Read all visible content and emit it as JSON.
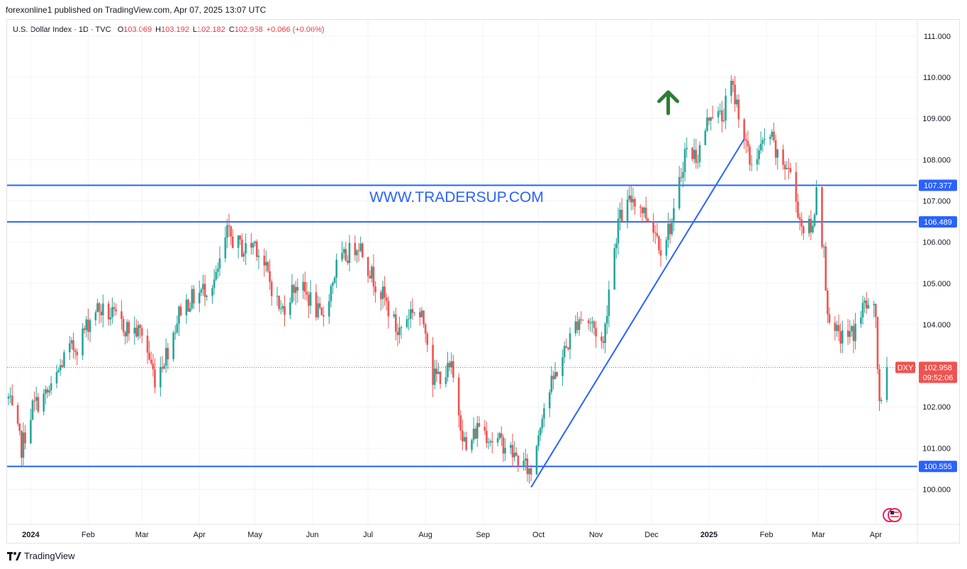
{
  "header": {
    "publisher": "forexonline1 published on TradingView.com, Apr 07, 2025 13:07 UTC"
  },
  "legend": {
    "symbol": "U.S. Dollar Index · 1D · TVC",
    "o_label": "O",
    "o_value": "103.069",
    "h_label": "H",
    "h_value": "103.192",
    "l_label": "L",
    "l_value": "102.182",
    "c_label": "C",
    "c_value": "102.958",
    "change": "+0.066 (+0.06%)"
  },
  "watermark": "WWW.TRADERSUP.COM",
  "footer": {
    "brand": "TradingView"
  },
  "colors": {
    "up": "#26a69a",
    "down": "#ef5350",
    "level_line": "#2962ff",
    "trend_line": "#2962ff",
    "arrow": "#2e7d32",
    "price_tag": "#ef5350"
  },
  "chart_data": {
    "type": "candlestick",
    "symbol": "DXY",
    "x_ticks": [
      "2024",
      "Feb",
      "Mar",
      "Apr",
      "May",
      "Jun",
      "Jul",
      "Aug",
      "Sep",
      "Oct",
      "Nov",
      "Dec",
      "2025",
      "Feb",
      "Mar",
      "Apr"
    ],
    "y_ticks": [
      "100.000",
      "101.000",
      "102.000",
      "103.000",
      "104.000",
      "105.000",
      "106.000",
      "107.000",
      "108.000",
      "109.000",
      "110.000",
      "111.000"
    ],
    "ylim": [
      99.2,
      111.6
    ],
    "horizontal_levels": [
      {
        "label": "107.377",
        "value": 107.377
      },
      {
        "label": "106.489",
        "value": 106.489
      },
      {
        "label": "100.555",
        "value": 100.555
      }
    ],
    "current_price": {
      "symbol_tag": "DXY",
      "label": "102.958",
      "value": 102.958,
      "countdown": "09:52:06"
    },
    "trend_line": {
      "from": [
        "2024-09-27",
        100.05
      ],
      "to": [
        "2025-01-20",
        108.5
      ]
    },
    "arrow": {
      "date": "2024-12-10",
      "direction": "up"
    },
    "anchor_closes": [
      [
        "2023-12-20",
        102.2
      ],
      [
        "2023-12-27",
        101.0
      ],
      [
        "2024-01-02",
        102.0
      ],
      [
        "2024-01-12",
        102.4
      ],
      [
        "2024-01-20",
        103.3
      ],
      [
        "2024-01-26",
        103.5
      ],
      [
        "2024-02-05",
        104.4
      ],
      [
        "2024-02-14",
        104.2
      ],
      [
        "2024-02-22",
        103.9
      ],
      [
        "2024-03-01",
        103.8
      ],
      [
        "2024-03-08",
        102.7
      ],
      [
        "2024-03-15",
        103.4
      ],
      [
        "2024-03-22",
        104.4
      ],
      [
        "2024-04-02",
        104.8
      ],
      [
        "2024-04-10",
        105.1
      ],
      [
        "2024-04-16",
        106.2
      ],
      [
        "2024-04-25",
        105.8
      ],
      [
        "2024-05-01",
        106.0
      ],
      [
        "2024-05-07",
        105.3
      ],
      [
        "2024-05-15",
        104.3
      ],
      [
        "2024-05-23",
        105.0
      ],
      [
        "2024-05-31",
        104.6
      ],
      [
        "2024-06-06",
        104.1
      ],
      [
        "2024-06-14",
        105.4
      ],
      [
        "2024-06-26",
        106.0
      ],
      [
        "2024-07-03",
        105.2
      ],
      [
        "2024-07-10",
        104.6
      ],
      [
        "2024-07-17",
        103.8
      ],
      [
        "2024-07-25",
        104.4
      ],
      [
        "2024-08-01",
        104.0
      ],
      [
        "2024-08-05",
        102.7
      ],
      [
        "2024-08-15",
        102.9
      ],
      [
        "2024-08-23",
        100.9
      ],
      [
        "2024-08-30",
        101.6
      ],
      [
        "2024-09-06",
        101.2
      ],
      [
        "2024-09-13",
        101.1
      ],
      [
        "2024-09-18",
        100.8
      ],
      [
        "2024-09-27",
        100.4
      ],
      [
        "2024-10-03",
        101.9
      ],
      [
        "2024-10-11",
        102.9
      ],
      [
        "2024-10-23",
        104.2
      ],
      [
        "2024-10-30",
        104.0
      ],
      [
        "2024-11-05",
        103.5
      ],
      [
        "2024-11-08",
        104.9
      ],
      [
        "2024-11-13",
        106.5
      ],
      [
        "2024-11-21",
        107.1
      ],
      [
        "2024-11-26",
        106.8
      ],
      [
        "2024-12-02",
        106.4
      ],
      [
        "2024-12-06",
        105.9
      ],
      [
        "2024-12-13",
        106.6
      ],
      [
        "2024-12-19",
        108.2
      ],
      [
        "2024-12-26",
        108.1
      ],
      [
        "2025-01-02",
        109.2
      ],
      [
        "2025-01-08",
        109.0
      ],
      [
        "2025-01-13",
        109.8
      ],
      [
        "2025-01-17",
        109.2
      ],
      [
        "2025-01-23",
        107.9
      ],
      [
        "2025-01-31",
        108.4
      ],
      [
        "2025-02-03",
        108.6
      ],
      [
        "2025-02-07",
        108.0
      ],
      [
        "2025-02-13",
        107.8
      ],
      [
        "2025-02-20",
        106.4
      ],
      [
        "2025-02-26",
        106.3
      ],
      [
        "2025-02-28",
        107.4
      ],
      [
        "2025-03-04",
        105.7
      ],
      [
        "2025-03-07",
        103.8
      ],
      [
        "2025-03-14",
        103.7
      ],
      [
        "2025-03-20",
        103.8
      ],
      [
        "2025-03-26",
        104.5
      ],
      [
        "2025-04-01",
        104.2
      ],
      [
        "2025-04-03",
        101.9
      ],
      [
        "2025-04-07",
        102.958
      ]
    ]
  }
}
